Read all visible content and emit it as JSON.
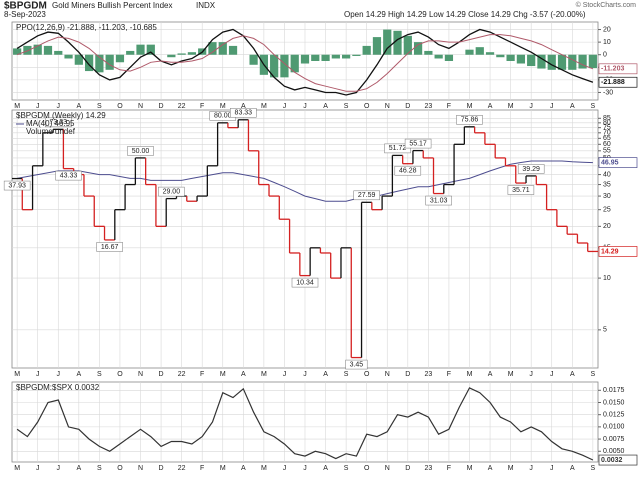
{
  "header": {
    "symbol": "$BPGDM",
    "name": "Gold Miners Bullish Percent Index",
    "exchange": "INDX",
    "date": "8-Sep-2023",
    "quote": "Open 14.29 High 14.29 Low 14.29 Close 14.29 Chg -3.57 (-20.00%)",
    "credit": "© StockCharts.com"
  },
  "chart_data": [
    {
      "type": "ppo",
      "title": "PPO(12,26,9) -21.888, -11.203, -10.685",
      "categories": [
        "M",
        null,
        "J",
        null,
        "J",
        null,
        "A",
        null,
        "S",
        null,
        "O",
        null,
        "N",
        null,
        "D",
        null,
        "22",
        null,
        "F",
        null,
        "M",
        null,
        "A",
        null,
        "M",
        null,
        "J",
        null,
        "J",
        null,
        "A",
        null,
        "S",
        null,
        "O",
        null,
        "N",
        null,
        "D",
        null,
        "23",
        null,
        "F",
        null,
        "M",
        null,
        "A",
        null,
        "M",
        null,
        "J",
        null,
        "J",
        null,
        "A",
        null,
        "S"
      ],
      "series": [
        {
          "name": "PPO",
          "color": "#111111",
          "values": [
            5,
            10,
            15,
            18,
            17,
            10,
            2,
            -8,
            -16,
            -20,
            -18,
            -10,
            -2,
            2,
            -5,
            -8,
            -5,
            -3,
            2,
            12,
            18,
            20,
            15,
            5,
            -8,
            -18,
            -25,
            -28,
            -26,
            -28,
            -30,
            -30,
            -32,
            -30,
            -20,
            -8,
            5,
            12,
            16,
            18,
            14,
            8,
            5,
            10,
            16,
            20,
            18,
            14,
            10,
            6,
            2,
            -3,
            -8,
            -12,
            -16,
            -19,
            -21.888
          ]
        },
        {
          "name": "Signal",
          "color": "#b05a6a",
          "values": [
            0,
            3,
            7,
            11,
            14,
            13,
            10,
            5,
            -2,
            -8,
            -12,
            -13,
            -10,
            -6,
            -5,
            -6,
            -6,
            -5,
            -3,
            2,
            8,
            13,
            15,
            13,
            8,
            0,
            -7,
            -14,
            -19,
            -23,
            -25,
            -27,
            -29,
            -29,
            -27,
            -22,
            -15,
            -7,
            1,
            8,
            11,
            11,
            10,
            10,
            12,
            14,
            16,
            16,
            15,
            13,
            11,
            8,
            4,
            0,
            -4,
            -8,
            -11.203
          ]
        },
        {
          "name": "Histogram",
          "color": "#4f9a72",
          "values": [
            5,
            7,
            8,
            7,
            3,
            -3,
            -8,
            -13,
            -14,
            -12,
            -6,
            3,
            8,
            8,
            0,
            -2,
            1,
            2,
            5,
            10,
            10,
            7,
            0,
            -8,
            -16,
            -18,
            -18,
            -14,
            -7,
            -5,
            -5,
            -3,
            -3,
            -1,
            7,
            14,
            20,
            19,
            15,
            10,
            3,
            -3,
            -5,
            0,
            4,
            6,
            2,
            -2,
            -5,
            -7,
            -9,
            -11,
            -12,
            -12,
            -12,
            -11,
            -10.685
          ]
        }
      ],
      "ylim": [
        -36,
        26
      ],
      "yticks": [
        20,
        10,
        0,
        -10,
        -20,
        -30
      ],
      "grid": true
    },
    {
      "type": "step",
      "log_scale": true,
      "up_color": "#111111",
      "down_color": "#d42020",
      "series": [
        {
          "name": "$BPGDM (Weekly) 14.29",
          "values": [
            37.93,
            25,
            45,
            70,
            73.33,
            43.33,
            40,
            30,
            20,
            16.67,
            25,
            35,
            50,
            35,
            20,
            29,
            30,
            28,
            30,
            45,
            80,
            75,
            83.33,
            55,
            35,
            30,
            22,
            14,
            10.34,
            15,
            14,
            10,
            15,
            3.45,
            27.59,
            25,
            30,
            51.72,
            46.28,
            55.17,
            50,
            31.03,
            35,
            60,
            75.86,
            70,
            60,
            50,
            45,
            35.71,
            39.29,
            35,
            25,
            20,
            18,
            16,
            14.29
          ],
          "value_labels": [
            "37.93",
            null,
            null,
            null,
            "73.33",
            "43.33",
            null,
            null,
            null,
            "16.67",
            null,
            null,
            "50.00",
            null,
            null,
            "29.00",
            null,
            null,
            null,
            null,
            "80.00",
            null,
            "83.33",
            null,
            null,
            null,
            null,
            null,
            "10.34",
            null,
            null,
            null,
            null,
            "3.45",
            "27.59",
            null,
            null,
            "51.72",
            "46.28",
            "55.17",
            null,
            "31.03",
            null,
            null,
            "75.86",
            null,
            null,
            null,
            null,
            "35.71",
            "39.29",
            null,
            null,
            null,
            null,
            null,
            "14.29"
          ]
        },
        {
          "name": "MA(40) 46.95",
          "color": "#4d4d8f",
          "values": [
            38,
            39,
            40,
            41,
            42,
            42,
            42,
            41,
            40,
            40,
            39,
            38,
            38,
            37,
            37,
            37,
            37,
            38,
            39,
            40,
            41,
            41,
            40,
            39,
            38,
            36,
            34,
            32,
            30,
            29,
            28,
            28,
            28,
            29,
            29,
            30,
            31,
            32,
            33,
            34,
            34,
            35,
            36,
            37,
            38,
            40,
            42,
            44,
            46,
            47,
            48,
            48,
            48,
            48,
            47.5,
            47.2,
            46.95
          ]
        }
      ],
      "volume_label": "Volume undef",
      "ylim": [
        3,
        95
      ],
      "yticks": [
        85,
        80,
        75,
        70,
        65,
        60,
        55,
        50,
        45,
        40,
        35,
        30,
        25,
        20,
        15,
        10,
        5
      ],
      "grid": true
    },
    {
      "type": "line",
      "title": "$BPGDM:$SPX 0.0032",
      "series": [
        {
          "name": "$BPGDM:$SPX",
          "color": "#333333",
          "values": [
            0.0095,
            0.008,
            0.011,
            0.015,
            0.0155,
            0.01,
            0.0095,
            0.0075,
            0.006,
            0.005,
            0.0065,
            0.008,
            0.0095,
            0.008,
            0.006,
            0.007,
            0.007,
            0.0065,
            0.008,
            0.011,
            0.017,
            0.016,
            0.0178,
            0.013,
            0.009,
            0.008,
            0.0065,
            0.0045,
            0.004,
            0.005,
            0.0045,
            0.0035,
            0.0045,
            0.004,
            0.0085,
            0.008,
            0.009,
            0.0125,
            0.012,
            0.013,
            0.012,
            0.0085,
            0.0095,
            0.014,
            0.018,
            0.017,
            0.015,
            0.012,
            0.011,
            0.009,
            0.01,
            0.009,
            0.007,
            0.0055,
            0.005,
            0.0042,
            0.0032
          ]
        }
      ],
      "ylim": [
        0.0028,
        0.0192
      ],
      "yticks": [
        {
          "value": 0.005,
          "label": "0.0050"
        },
        0.0075,
        {
          "value": 0.01,
          "label": "0.0100"
        },
        0.0125,
        {
          "value": 0.015,
          "label": "0.0150"
        },
        0.0175
      ],
      "grid": true
    }
  ]
}
